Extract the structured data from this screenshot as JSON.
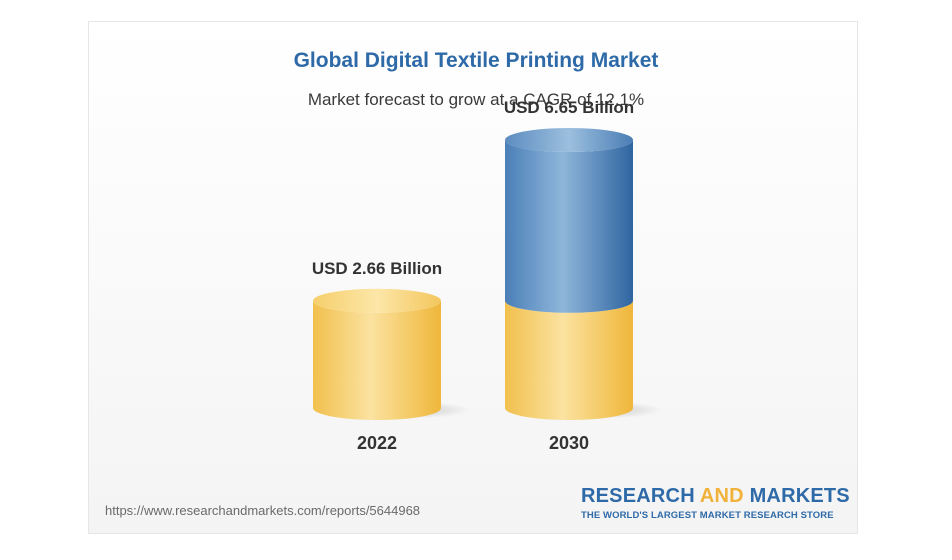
{
  "chart_data": {
    "type": "bar",
    "style": "3d-cylinder",
    "title": "Global Digital Textile Printing Market",
    "subtitle": "Market forecast to grow at a CAGR of 12.1%",
    "categories": [
      "2022",
      "2030"
    ],
    "values": [
      2.66,
      6.65
    ],
    "value_labels": [
      "USD 2.66 Billion",
      "USD 6.65 Billion"
    ],
    "unit": "USD Billion",
    "ylim": [
      0,
      7
    ],
    "grid": false,
    "legend": "none",
    "colors": {
      "base_segment": "#f2c14e",
      "growth_segment": "#4f86bd"
    }
  },
  "footer": {
    "source_url": "https://www.researchandmarkets.com/reports/5644968",
    "brand_part1": "RESEARCH",
    "brand_part2": "AND",
    "brand_part3": "MARKETS",
    "brand_tagline": "THE WORLD'S LARGEST MARKET RESEARCH STORE"
  },
  "colors": {
    "title": "#2e6aa8",
    "brand_blue": "#2e6aa8",
    "brand_gold": "#f0b23a"
  }
}
